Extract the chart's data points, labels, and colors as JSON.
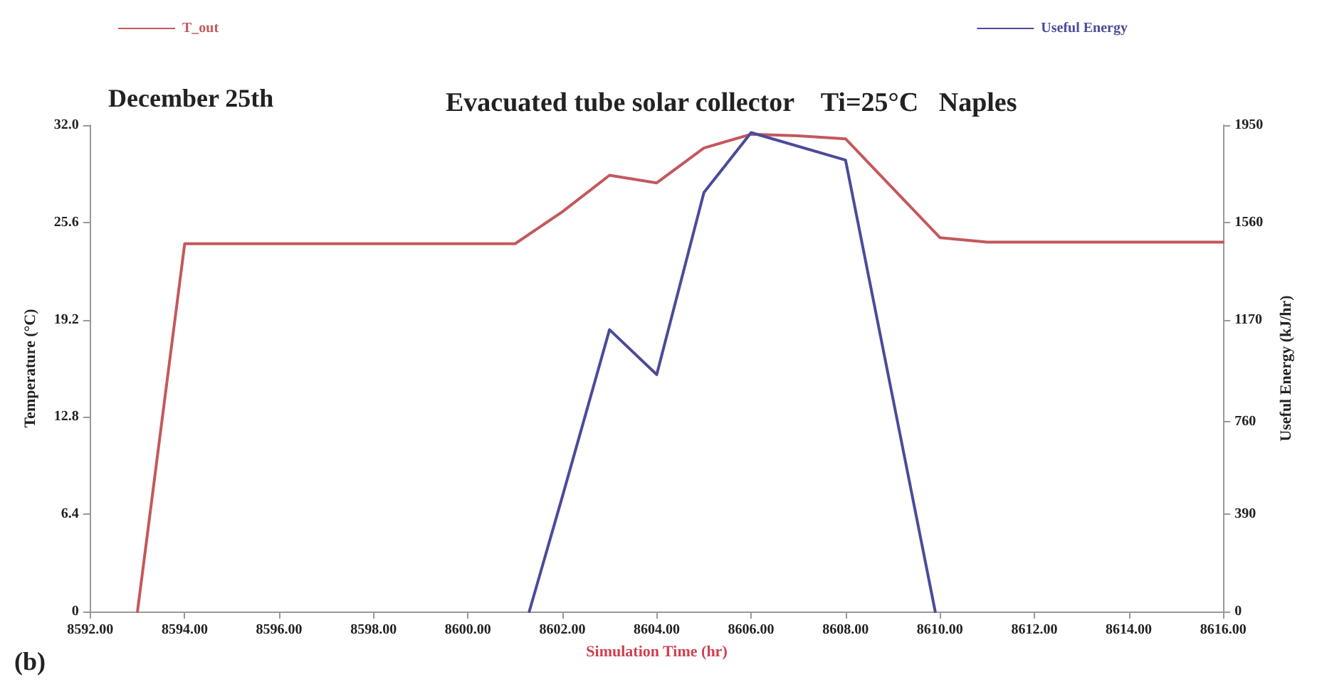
{
  "chart_data": {
    "type": "line",
    "title": "Evacuated tube solar collector    Ti=25°C   Naples",
    "annotations": [
      "December 25th",
      "(b)"
    ],
    "xlabel": "Simulation Time (hr)",
    "ylabel": "Temperature (°C)",
    "y2label": "Useful Energy (kJ/hr)",
    "xlim": [
      8592,
      8616
    ],
    "xticks": [
      {
        "value": 8592,
        "label": "8592.00"
      },
      {
        "value": 8594,
        "label": "8594.00"
      },
      {
        "value": 8596,
        "label": "8596.00"
      },
      {
        "value": 8598,
        "label": "8598.00"
      },
      {
        "value": 8600,
        "label": "8600.00"
      },
      {
        "value": 8602,
        "label": "8602.00"
      },
      {
        "value": 8604,
        "label": "8604.00"
      },
      {
        "value": 8606,
        "label": "8606.00"
      },
      {
        "value": 8608,
        "label": "8608.00"
      },
      {
        "value": 8610,
        "label": "8610.00"
      },
      {
        "value": 8612,
        "label": "8612.00"
      },
      {
        "value": 8614,
        "label": "8614.00"
      },
      {
        "value": 8616,
        "label": "8616.00"
      }
    ],
    "ylim": [
      0,
      32
    ],
    "yticks": [
      0,
      6.4,
      12.8,
      19.2,
      25.6,
      {
        "value": 32,
        "label": "32.0"
      }
    ],
    "y2lim": [
      0,
      1950
    ],
    "y2ticks": [
      0,
      390,
      760,
      1170,
      1560,
      1950
    ],
    "grid": false,
    "legend": "top",
    "marker": "none",
    "line_style": "solid",
    "series": [
      {
        "name": "T_out",
        "color": "#c4585c",
        "x": [
          8593,
          8594,
          8601,
          8602,
          8603,
          8604,
          8605,
          8606,
          8607,
          8608,
          8610,
          8611,
          8616
        ],
        "values": [
          0,
          24.2,
          24.2,
          26.3,
          28.7,
          28.2,
          30.5,
          31.4,
          31.3,
          31.1,
          24.6,
          24.3,
          24.3
        ]
      },
      {
        "name": "Useful Energy",
        "color": "#4b4b9a",
        "axis": "y2",
        "x": [
          8601.3,
          8602,
          8603,
          8604,
          8605,
          8606,
          8608,
          8609.9
        ],
        "values": [
          0,
          460,
          1130,
          950,
          1680,
          1920,
          1810,
          0
        ]
      }
    ]
  }
}
